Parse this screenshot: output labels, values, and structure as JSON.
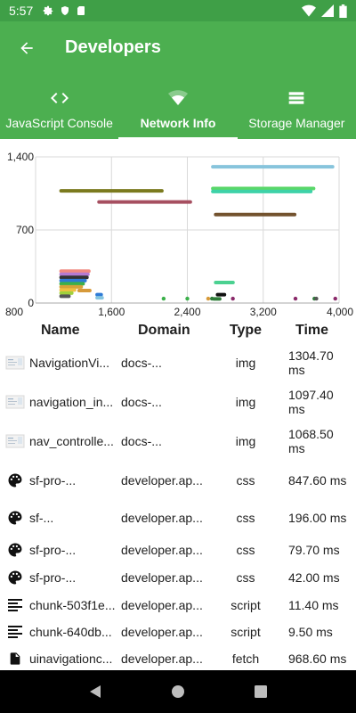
{
  "status": {
    "time": "5:57"
  },
  "header": {
    "title": "Developers"
  },
  "tabs": [
    {
      "label": "JavaScript Console",
      "icon": "code-icon"
    },
    {
      "label": "Network Info",
      "icon": "wifi-icon"
    },
    {
      "label": "Storage Manager",
      "icon": "storage-icon"
    }
  ],
  "chart_data": {
    "type": "timeline",
    "x_ticks": [
      "800",
      "1,600",
      "2,400",
      "3,200",
      "4,000"
    ],
    "y_ticks": [
      "1,400",
      "700",
      "0"
    ],
    "xlim": [
      800,
      4000
    ],
    "ylim": [
      0,
      1400
    ],
    "bars": [
      {
        "start": 2650,
        "end": 3950,
        "y": 1305,
        "color": "#87c4dc"
      },
      {
        "start": 2650,
        "end": 3750,
        "y": 1097,
        "color": "#5ad76a"
      },
      {
        "start": 2650,
        "end": 3720,
        "y": 1068,
        "color": "#3ed2a8"
      },
      {
        "start": 1050,
        "end": 2150,
        "y": 1075,
        "color": "#7b7a1e"
      },
      {
        "start": 1450,
        "end": 2450,
        "y": 968,
        "color": "#a64f60"
      },
      {
        "start": 2680,
        "end": 3550,
        "y": 847,
        "color": "#73522e"
      },
      {
        "start": 2680,
        "end": 2900,
        "y": 196,
        "color": "#4bd191"
      },
      {
        "start": 1050,
        "end": 1380,
        "y": 305,
        "color": "#f08a80"
      },
      {
        "start": 1050,
        "end": 1370,
        "y": 275,
        "color": "#b57ad2"
      },
      {
        "start": 1050,
        "end": 1360,
        "y": 245,
        "color": "#333333"
      },
      {
        "start": 1050,
        "end": 1340,
        "y": 215,
        "color": "#2e7bd6"
      },
      {
        "start": 1050,
        "end": 1320,
        "y": 185,
        "color": "#3bb04a"
      },
      {
        "start": 1050,
        "end": 1300,
        "y": 155,
        "color": "#d6a338"
      },
      {
        "start": 1050,
        "end": 1230,
        "y": 125,
        "color": "#f0c040"
      },
      {
        "start": 1050,
        "end": 1200,
        "y": 95,
        "color": "#a1d13c"
      },
      {
        "start": 1050,
        "end": 1170,
        "y": 65,
        "color": "#555555"
      },
      {
        "start": 1240,
        "end": 1390,
        "y": 120,
        "color": "#d79a3a"
      },
      {
        "start": 1430,
        "end": 1510,
        "y": 80,
        "color": "#2e7bd6"
      },
      {
        "start": 1430,
        "end": 1520,
        "y": 50,
        "color": "#86c5e0"
      },
      {
        "start": 2700,
        "end": 2810,
        "y": 80,
        "color": "#111111"
      },
      {
        "start": 2660,
        "end": 2760,
        "y": 40,
        "color": "#2f7e3a"
      }
    ],
    "points": [
      {
        "x": 2150,
        "y": 42,
        "color": "#3bb04a"
      },
      {
        "x": 2400,
        "y": 42,
        "color": "#3bb04a"
      },
      {
        "x": 2620,
        "y": 42,
        "color": "#d79a3a"
      },
      {
        "x": 2660,
        "y": 42,
        "color": "#2f7e3a"
      },
      {
        "x": 2880,
        "y": 42,
        "color": "#8a2a6a"
      },
      {
        "x": 3540,
        "y": 42,
        "color": "#8a2a6a"
      },
      {
        "x": 3740,
        "y": 42,
        "color": "#2f7e3a"
      },
      {
        "x": 3760,
        "y": 42,
        "color": "#555555"
      },
      {
        "x": 3960,
        "y": 42,
        "color": "#8a2a6a"
      }
    ]
  },
  "table": {
    "headers": {
      "name": "Name",
      "domain": "Domain",
      "type": "Type",
      "time": "Time"
    },
    "rows": [
      {
        "icon": "image-thumbnail-icon",
        "name": "NavigationVi...",
        "domain": "docs-...",
        "type": "img",
        "time": "1304.70 ms"
      },
      {
        "icon": "image-thumbnail-icon",
        "name": "navigation_in...",
        "domain": "docs-...",
        "type": "img",
        "time": "1097.40 ms"
      },
      {
        "icon": "image-thumbnail-icon",
        "name": "nav_controlle...",
        "domain": "docs-...",
        "type": "img",
        "time": "1068.50 ms"
      },
      {
        "icon": "palette-icon",
        "name": "sf-pro-...",
        "domain": "developer.ap...",
        "type": "css",
        "time": "847.60 ms"
      },
      {
        "icon": "palette-icon",
        "name": "sf-...",
        "domain": "developer.ap...",
        "type": "css",
        "time": "196.00 ms"
      },
      {
        "icon": "palette-icon",
        "name": "sf-pro-...",
        "domain": "developer.ap...",
        "type": "css",
        "time": "79.70 ms"
      },
      {
        "icon": "palette-icon",
        "name": "sf-pro-...",
        "domain": "developer.ap...",
        "type": "css",
        "time": "42.00 ms"
      },
      {
        "icon": "script-lines-icon",
        "name": "chunk-503f1e...",
        "domain": "developer.ap...",
        "type": "script",
        "time": "11.40 ms"
      },
      {
        "icon": "script-lines-icon",
        "name": "chunk-640db...",
        "domain": "developer.ap...",
        "type": "script",
        "time": "9.50 ms"
      },
      {
        "icon": "document-icon",
        "name": "uinavigationc...",
        "domain": "developer.ap...",
        "type": "fetch",
        "time": "968.60 ms"
      }
    ]
  }
}
